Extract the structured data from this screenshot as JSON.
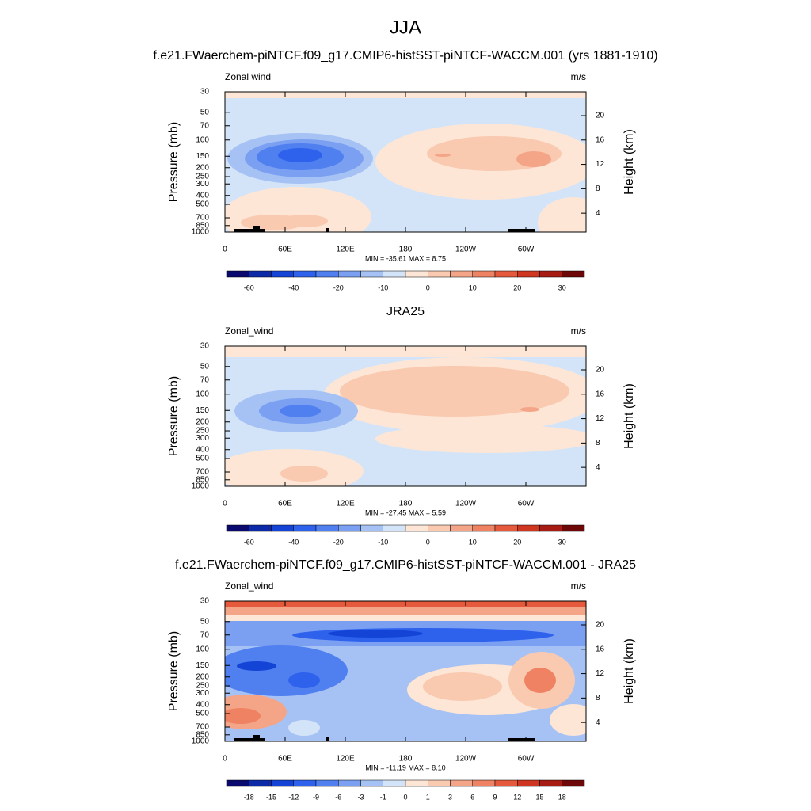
{
  "title": "JJA",
  "chart_data": [
    {
      "type": "contour",
      "title": "f.e21.FWaerchem-piNTCF.f09_g17.CMIP6-histSST-piNTCF-WACCM.001 (yrs 1881-1910)",
      "left_label": "Zonal wind",
      "right_label": "m/s",
      "stats": "MIN = -35.61  MAX =   8.75",
      "ylabel": "Pressure (mb)",
      "y2label": "Height (km)",
      "log_y": true,
      "xlim": [
        0,
        360
      ],
      "xticks": [
        0,
        {
          "value": 60,
          "label": "60E"
        },
        {
          "value": 120,
          "label": "120E"
        },
        180,
        {
          "value": 240,
          "label": "120W"
        },
        {
          "value": 300,
          "label": "60W"
        }
      ],
      "ylim": [
        1000,
        30
      ],
      "yticks": [
        30,
        50,
        70,
        100,
        150,
        200,
        250,
        300,
        400,
        500,
        700,
        850,
        1000
      ],
      "y2lim": [
        0.9,
        23.9
      ],
      "y2ticks": [
        4,
        8,
        12,
        16,
        20
      ],
      "colorbar_labels": [
        -60,
        -40,
        -20,
        -10,
        0,
        10,
        20,
        30
      ],
      "colors": [
        "#0a0a6e",
        "#0c2aa8",
        "#1444d6",
        "#2e62ec",
        "#5080f0",
        "#7ba0f2",
        "#a6c2f5",
        "#d3e4f9",
        "#fde6d6",
        "#f9c9b0",
        "#f4a588",
        "#ef8262",
        "#e55a3c",
        "#cf3620",
        "#a61c12",
        "#6e0808"
      ],
      "topography": true
    },
    {
      "type": "contour",
      "title": "JRA25",
      "left_label": "Zonal_wind",
      "right_label": "m/s",
      "stats": "MIN = -27.45  MAX =   5.59",
      "ylabel": "Pressure (mb)",
      "y2label": "Height (km)",
      "log_y": true,
      "xlim": [
        0,
        360
      ],
      "xticks": [
        0,
        {
          "value": 60,
          "label": "60E"
        },
        {
          "value": 120,
          "label": "120E"
        },
        180,
        {
          "value": 240,
          "label": "120W"
        },
        {
          "value": 300,
          "label": "60W"
        }
      ],
      "ylim": [
        1000,
        30
      ],
      "yticks": [
        30,
        50,
        70,
        100,
        150,
        200,
        250,
        300,
        400,
        500,
        700,
        850,
        1000
      ],
      "y2lim": [
        0.9,
        23.9
      ],
      "y2ticks": [
        4,
        8,
        12,
        16,
        20
      ],
      "colorbar_labels": [
        -60,
        -40,
        -20,
        -10,
        0,
        10,
        20,
        30
      ],
      "colors": [
        "#0a0a6e",
        "#0c2aa8",
        "#1444d6",
        "#2e62ec",
        "#5080f0",
        "#7ba0f2",
        "#a6c2f5",
        "#d3e4f9",
        "#fde6d6",
        "#f9c9b0",
        "#f4a588",
        "#ef8262",
        "#e55a3c",
        "#cf3620",
        "#a61c12",
        "#6e0808"
      ],
      "topography": false
    },
    {
      "type": "contour",
      "title": "f.e21.FWaerchem-piNTCF.f09_g17.CMIP6-histSST-piNTCF-WACCM.001 - JRA25",
      "left_label": "Zonal_wind",
      "right_label": "m/s",
      "stats": "MIN = -11.19  MAX =   8.10",
      "ylabel": "Pressure (mb)",
      "y2label": "Height (km)",
      "log_y": true,
      "xlim": [
        0,
        360
      ],
      "xticks": [
        0,
        {
          "value": 60,
          "label": "60E"
        },
        {
          "value": 120,
          "label": "120E"
        },
        180,
        {
          "value": 240,
          "label": "120W"
        },
        {
          "value": 300,
          "label": "60W"
        }
      ],
      "ylim": [
        1000,
        30
      ],
      "yticks": [
        30,
        50,
        70,
        100,
        150,
        200,
        250,
        300,
        400,
        500,
        700,
        850,
        1000
      ],
      "y2lim": [
        0.9,
        23.9
      ],
      "y2ticks": [
        4,
        8,
        12,
        16,
        20
      ],
      "colorbar_labels": [
        -18,
        -15,
        -12,
        -9,
        -6,
        -3,
        -1,
        0,
        1,
        3,
        6,
        9,
        12,
        15,
        18
      ],
      "colors": [
        "#0a0a6e",
        "#0c2aa8",
        "#1444d6",
        "#2e62ec",
        "#5080f0",
        "#7ba0f2",
        "#a6c2f5",
        "#d3e4f9",
        "#fde6d6",
        "#f9c9b0",
        "#f4a588",
        "#ef8262",
        "#e55a3c",
        "#cf3620",
        "#a61c12",
        "#6e0808"
      ],
      "topography": true
    }
  ]
}
